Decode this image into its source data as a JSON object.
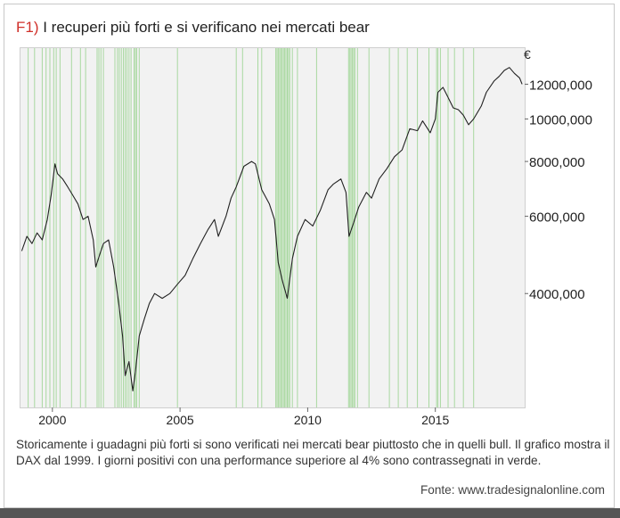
{
  "header": {
    "label": "F1)",
    "title": "I recuperi più forti e si verificano nei mercati bear"
  },
  "caption": "Storicamente i guadagni più forti si sono verificati nei mercati bear piuttosto che in quelli bull. Il grafico mostra il DAX dal 1999. I giorni positivi con una performance superiore al 4% sono contrassegnati in verde.",
  "source": "Fonte: www.tradesignalonline.com",
  "colors": {
    "line": "#222222",
    "highlight": "#a8d8a0",
    "accent": "#d0302a",
    "plot_bg": "#f2f2f2"
  },
  "chart_data": {
    "type": "line",
    "y_unit_label": "€",
    "y_scale": "log",
    "x_range": [
      1998.75,
      2018.5
    ],
    "y_range": [
      2200,
      14500
    ],
    "x_ticks": [
      {
        "value": 2000,
        "label": "2000"
      },
      {
        "value": 2005,
        "label": "2005"
      },
      {
        "value": 2010,
        "label": "2010"
      },
      {
        "value": 2015,
        "label": "2015"
      }
    ],
    "y_ticks": [
      {
        "value": 4000,
        "label": "4000,000"
      },
      {
        "value": 6000,
        "label": "6000,000"
      },
      {
        "value": 8000,
        "label": "8000,000"
      },
      {
        "value": 10000,
        "label": "10000,000"
      },
      {
        "value": 12000,
        "label": "12000,000"
      }
    ],
    "series": [
      {
        "x": [
          1998.8,
          1999.0,
          1999.2,
          1999.4,
          1999.6,
          1999.8,
          1999.95,
          2000.1,
          2000.2,
          2000.4,
          2000.6,
          2000.8,
          2001.0,
          2001.2,
          2001.4,
          2001.6,
          2001.7,
          2001.85,
          2002.0,
          2002.2,
          2002.4,
          2002.6,
          2002.75,
          2002.85,
          2003.0,
          2003.15,
          2003.25,
          2003.4,
          2003.6,
          2003.8,
          2004.0,
          2004.3,
          2004.6,
          2004.9,
          2005.2,
          2005.5,
          2005.8,
          2006.1,
          2006.35,
          2006.5,
          2006.8,
          2007.0,
          2007.2,
          2007.5,
          2007.8,
          2007.95,
          2008.2,
          2008.5,
          2008.7,
          2008.85,
          2009.0,
          2009.2,
          2009.4,
          2009.6,
          2009.9,
          2010.2,
          2010.5,
          2010.8,
          2011.0,
          2011.3,
          2011.5,
          2011.62,
          2011.8,
          2012.0,
          2012.3,
          2012.5,
          2012.8,
          2013.1,
          2013.4,
          2013.7,
          2014.0,
          2014.3,
          2014.5,
          2014.8,
          2015.0,
          2015.1,
          2015.3,
          2015.5,
          2015.7,
          2015.9,
          2016.1,
          2016.3,
          2016.5,
          2016.8,
          2017.0,
          2017.3,
          2017.5,
          2017.7,
          2017.9,
          2018.1,
          2018.3,
          2018.4
        ],
        "y": [
          5000,
          5400,
          5200,
          5500,
          5300,
          5900,
          6700,
          7900,
          7500,
          7300,
          7000,
          6700,
          6400,
          5900,
          6000,
          5300,
          4600,
          4900,
          5200,
          5300,
          4600,
          3800,
          3200,
          2600,
          2800,
          2400,
          2650,
          3200,
          3500,
          3800,
          4000,
          3900,
          4000,
          4200,
          4400,
          4800,
          5200,
          5600,
          5900,
          5400,
          6000,
          6600,
          7000,
          7800,
          8000,
          7900,
          6900,
          6400,
          5900,
          4700,
          4300,
          3900,
          4800,
          5400,
          5900,
          5700,
          6200,
          6900,
          7100,
          7300,
          6800,
          5400,
          5800,
          6300,
          6800,
          6600,
          7300,
          7700,
          8200,
          8500,
          9500,
          9400,
          9900,
          9300,
          10000,
          11500,
          11800,
          11200,
          10600,
          10500,
          10200,
          9700,
          10000,
          10700,
          11500,
          12200,
          12500,
          12900,
          13100,
          12700,
          12400,
          12000
        ]
      }
    ],
    "highlighted_years": [
      1999.05,
      1999.3,
      1999.6,
      1999.75,
      1999.9,
      2000.05,
      2000.15,
      2000.3,
      2000.75,
      2001.1,
      2001.3,
      2001.75,
      2001.82,
      2001.9,
      2002.0,
      2002.45,
      2002.55,
      2002.62,
      2002.7,
      2002.78,
      2002.85,
      2002.92,
      2003.0,
      2003.08,
      2003.2,
      2003.25,
      2003.3,
      2003.4,
      2004.9,
      2007.2,
      2007.45,
      2008.05,
      2008.2,
      2008.75,
      2008.8,
      2008.85,
      2008.9,
      2008.95,
      2009.0,
      2009.05,
      2009.1,
      2009.15,
      2009.2,
      2009.25,
      2009.3,
      2009.4,
      2009.6,
      2010.35,
      2011.6,
      2011.65,
      2011.7,
      2011.75,
      2011.8,
      2011.85,
      2011.95,
      2012.4,
      2013.2,
      2013.55,
      2013.9,
      2014.3,
      2014.75,
      2015.05,
      2015.1,
      2015.2,
      2015.5,
      2015.75,
      2016.1,
      2016.5
    ]
  }
}
